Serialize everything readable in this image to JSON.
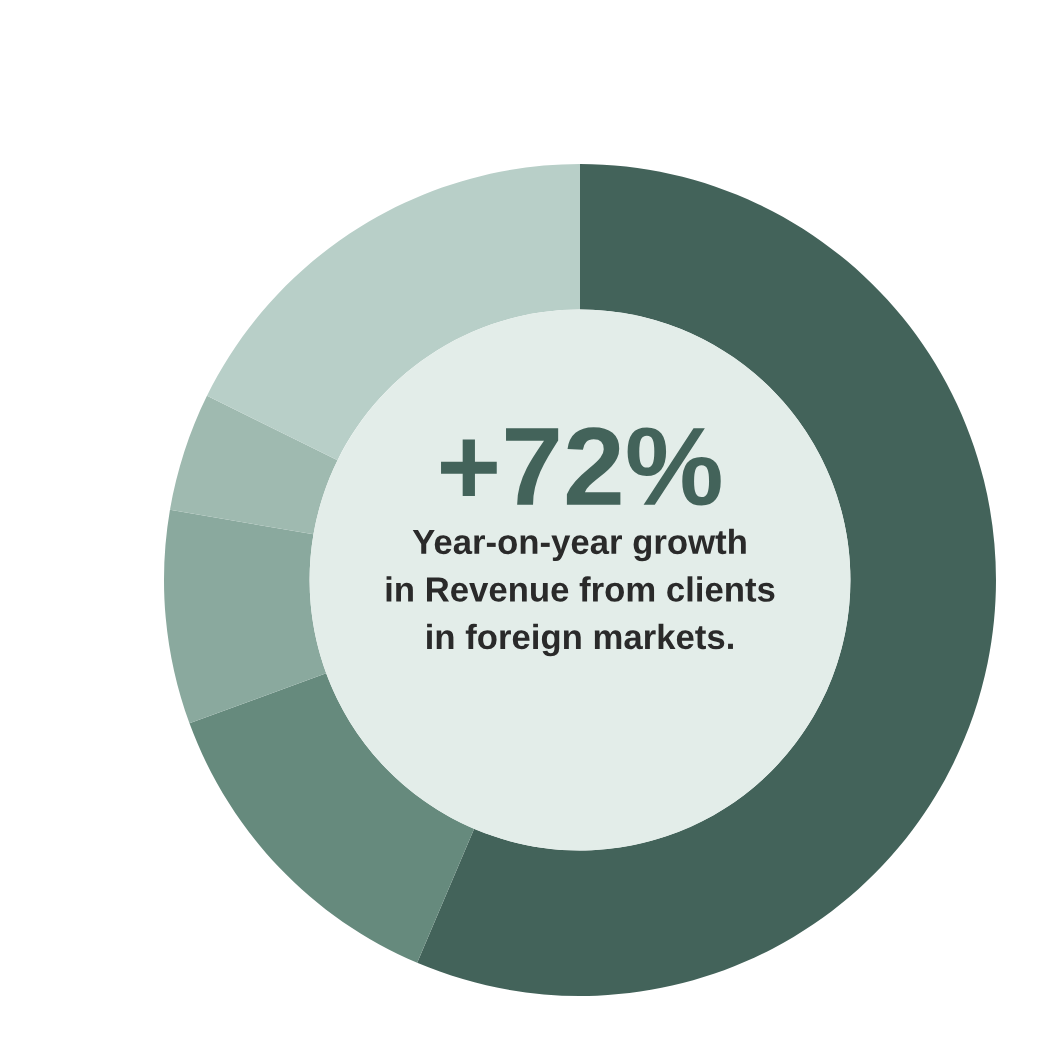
{
  "chart_data": {
    "type": "donut",
    "categories": [
      null,
      null,
      null,
      null,
      null
    ],
    "values": [
      56.4,
      13.0,
      8.3,
      4.6,
      17.7
    ],
    "colors": [
      "#43635a",
      "#668a7d",
      "#8aa99e",
      "#9fbab0",
      "#b8cfc8"
    ],
    "annotations": [
      "+72%",
      "Year-on-year growth\nin Revenue from clients\nin foreign markets."
    ]
  }
}
